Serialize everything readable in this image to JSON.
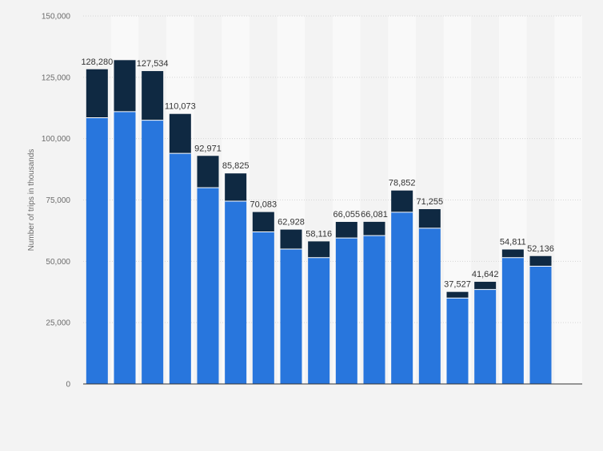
{
  "chart_data": {
    "type": "bar",
    "stacked": true,
    "title": "",
    "xlabel": "",
    "ylabel": "Number of trips in thousands",
    "ylim": [
      0,
      150000
    ],
    "yticks": [
      0,
      25000,
      50000,
      75000,
      100000,
      125000,
      150000
    ],
    "ytick_labels": [
      "0",
      "25,000",
      "50,000",
      "75,000",
      "100,000",
      "125,000",
      "150,000"
    ],
    "grid": true,
    "legend": "none",
    "categories": [
      "",
      "",
      "",
      "",
      "",
      "",
      "",
      "",
      "",
      "",
      "",
      "",
      "",
      "",
      "",
      "",
      "",
      ""
    ],
    "series": [
      {
        "color": "#2876dd",
        "values": [
          108500,
          111000,
          107500,
          94000,
          80000,
          74500,
          62000,
          55000,
          51500,
          59500,
          60500,
          70000,
          63500,
          35000,
          38500,
          51500,
          48000,
          null
        ]
      },
      {
        "color": "#0f2942",
        "values": [
          19780,
          21000,
          20034,
          16073,
          12971,
          11325,
          8083,
          7928,
          6616,
          6555,
          5581,
          8852,
          7755,
          2527,
          3142,
          3311,
          4136,
          null
        ]
      }
    ],
    "totals": [
      128280,
      132000,
      127534,
      110073,
      92971,
      85825,
      70083,
      62928,
      58116,
      66055,
      66081,
      78852,
      71255,
      37527,
      41642,
      54811,
      52136,
      null
    ],
    "total_labels": [
      "128,280",
      "",
      "127,534",
      "110,073",
      "92,971",
      "85,825",
      "70,083",
      "62,928",
      "58,116",
      "66,055",
      "66,081",
      "78,852",
      "71,255",
      "37,527",
      "41,642",
      "54,811",
      "52,136",
      ""
    ]
  }
}
